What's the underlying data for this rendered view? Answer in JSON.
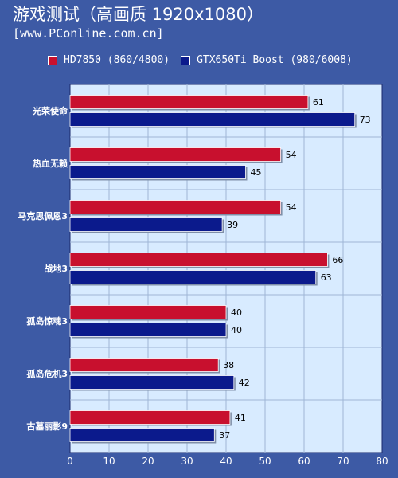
{
  "header": {
    "title": "游戏测试（高画质 1920x1080）",
    "subtitle": "[www.PConline.com.cn]"
  },
  "legend": {
    "series0": "HD7850 (860/4800)",
    "series1": "GTX650Ti Boost (980/6008)"
  },
  "chart_data": {
    "type": "bar",
    "orientation": "horizontal",
    "categories": [
      "光荣使命",
      "热血无赖",
      "马克思佩恩3",
      "战地3",
      "孤岛惊魂3",
      "孤岛危机3",
      "古墓丽影9"
    ],
    "series": [
      {
        "name": "HD7850 (860/4800)",
        "values": [
          61,
          54,
          54,
          66,
          40,
          38,
          41
        ],
        "color": "#c8102e"
      },
      {
        "name": "GTX650Ti Boost (980/6008)",
        "values": [
          73,
          45,
          39,
          63,
          40,
          42,
          37
        ],
        "color": "#0b1a8c"
      }
    ],
    "xlim": [
      0,
      80
    ],
    "xticks": [
      0,
      10,
      20,
      30,
      40,
      50,
      60,
      70,
      80
    ],
    "grid": true,
    "legend_position": "top",
    "plot_background": "#d8ebff"
  }
}
